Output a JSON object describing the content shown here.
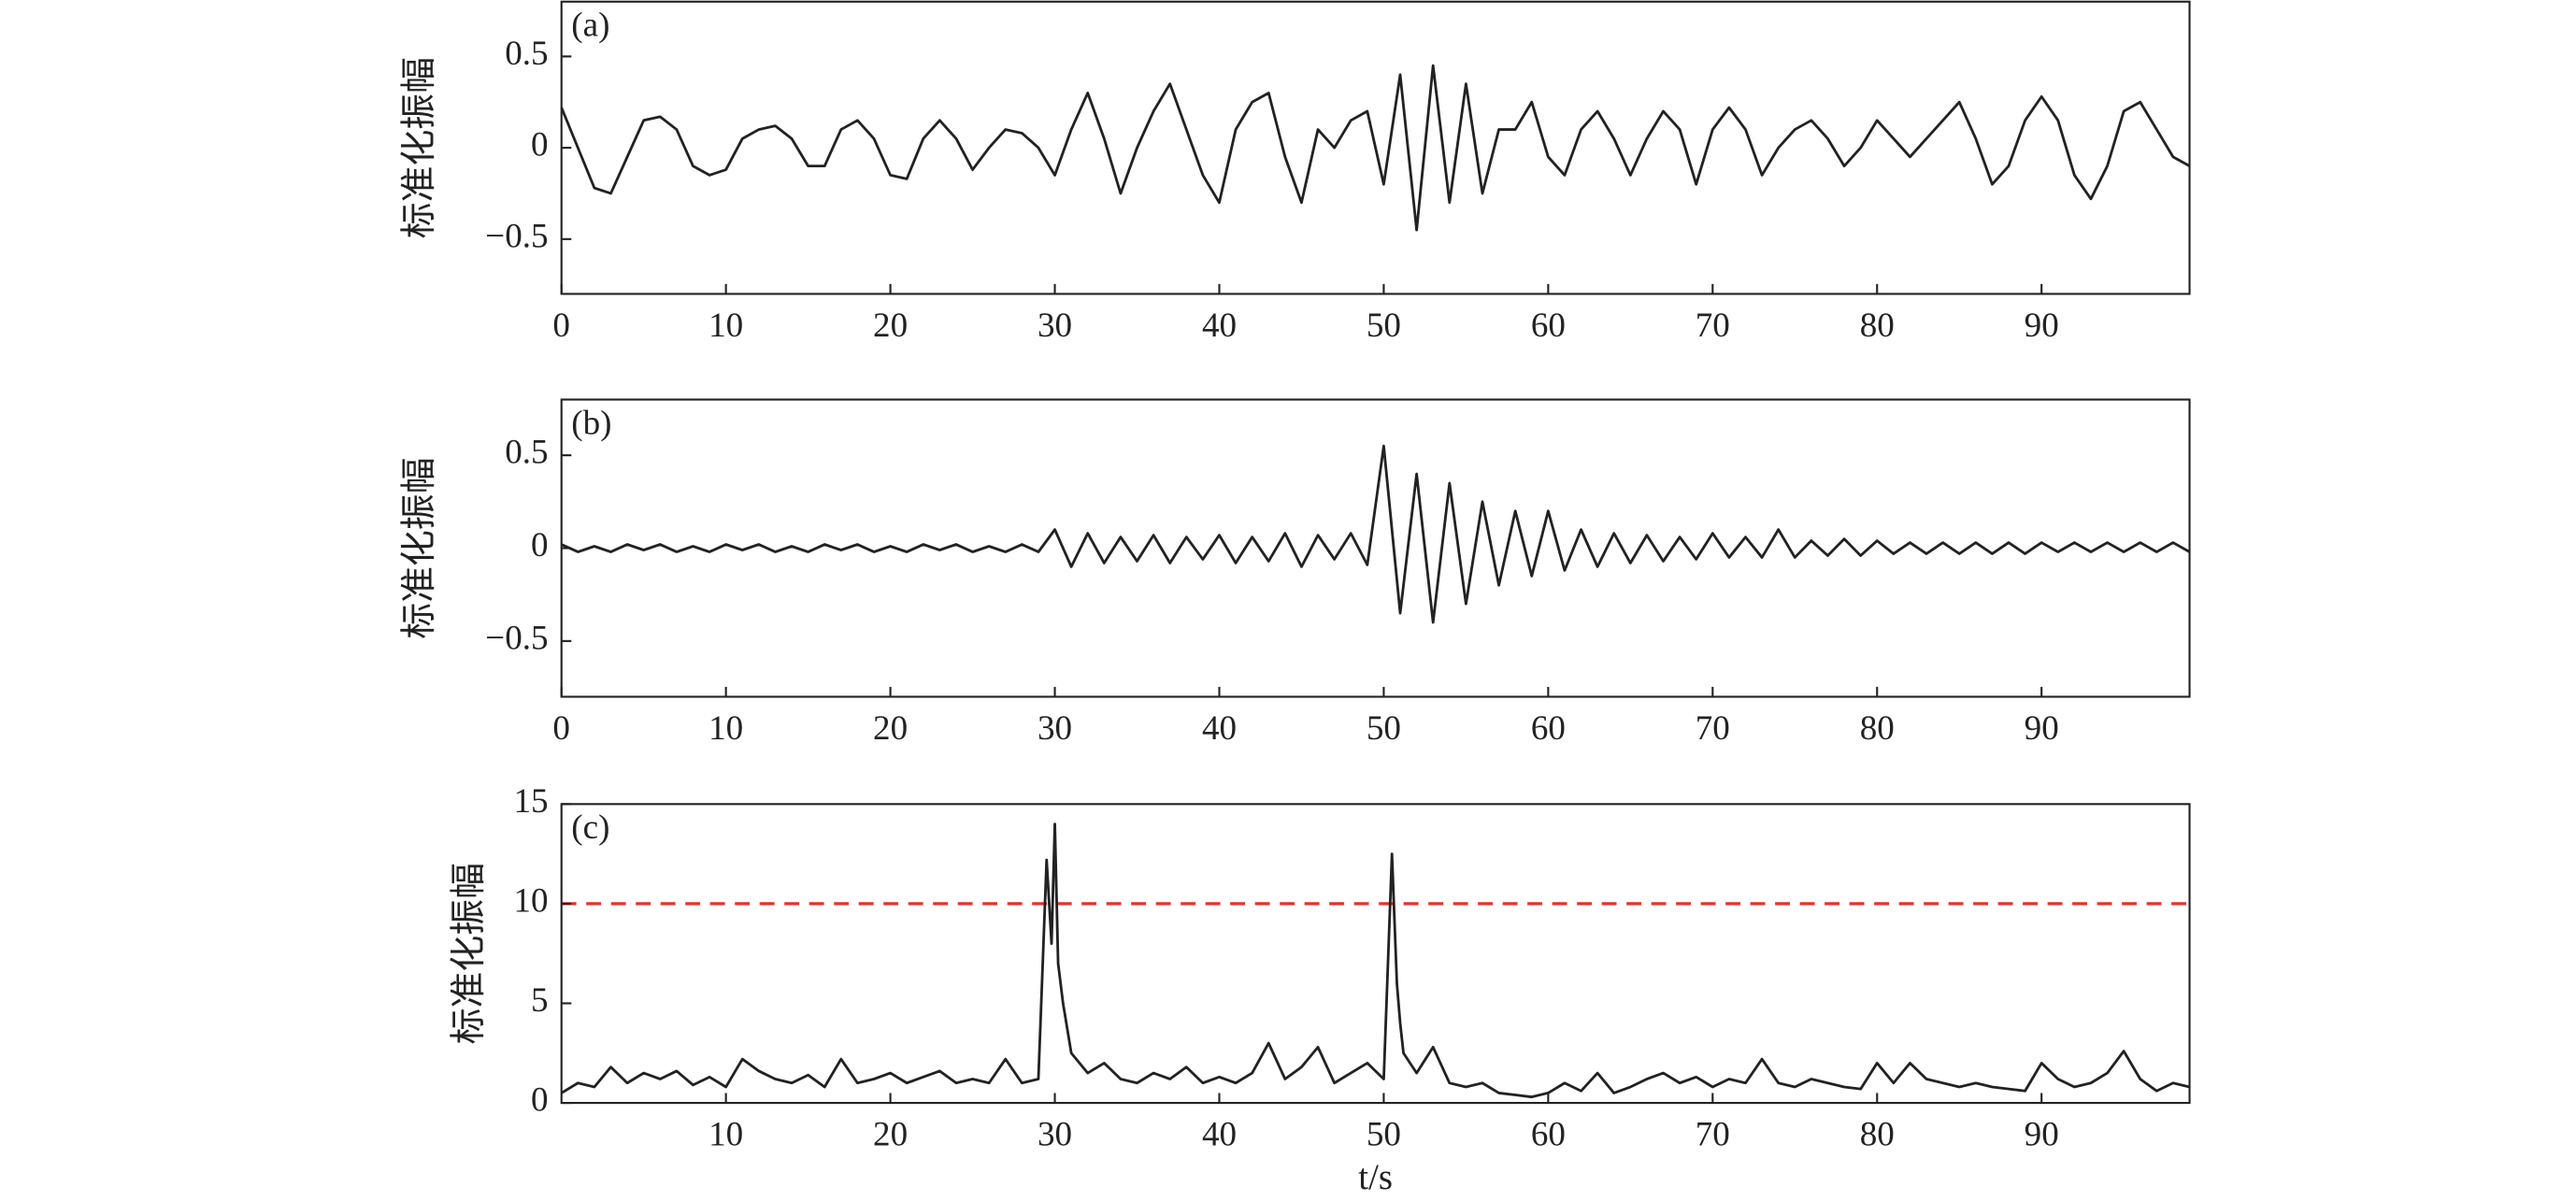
{
  "chart_data": [
    {
      "type": "line",
      "panel_label": "(a)",
      "ylabel": "标准化振幅",
      "x": [
        0,
        1,
        2,
        3,
        4,
        5,
        6,
        7,
        8,
        9,
        10,
        11,
        12,
        13,
        14,
        15,
        16,
        17,
        18,
        19,
        20,
        21,
        22,
        23,
        24,
        25,
        26,
        27,
        28,
        29,
        30,
        31,
        32,
        33,
        34,
        35,
        36,
        37,
        38,
        39,
        40,
        41,
        42,
        43,
        44,
        45,
        46,
        47,
        48,
        49,
        50,
        51,
        52,
        53,
        54,
        55,
        56,
        57,
        58,
        59,
        60,
        61,
        62,
        63,
        64,
        65,
        66,
        67,
        68,
        69,
        70,
        71,
        72,
        73,
        74,
        75,
        76,
        77,
        78,
        79,
        80,
        81,
        82,
        83,
        84,
        85,
        86,
        87,
        88,
        89,
        90,
        91,
        92,
        93,
        94,
        95,
        96,
        97,
        98,
        99
      ],
      "series": [
        {
          "color": "#222222",
          "values": [
            0.22,
            0.0,
            -0.22,
            -0.25,
            -0.05,
            0.15,
            0.17,
            0.1,
            -0.1,
            -0.15,
            -0.12,
            0.05,
            0.1,
            0.12,
            0.05,
            -0.1,
            -0.1,
            0.1,
            0.15,
            0.05,
            -0.15,
            -0.17,
            0.05,
            0.15,
            0.05,
            -0.12,
            0.0,
            0.1,
            0.08,
            0.0,
            -0.15,
            0.1,
            0.3,
            0.05,
            -0.25,
            0.0,
            0.2,
            0.35,
            0.1,
            -0.15,
            -0.3,
            0.1,
            0.25,
            0.3,
            -0.05,
            -0.3,
            0.1,
            0.0,
            0.15,
            0.2,
            -0.2,
            0.4,
            -0.45,
            0.45,
            -0.3,
            0.35,
            -0.25,
            0.1,
            0.1,
            0.25,
            -0.05,
            -0.15,
            0.1,
            0.2,
            0.05,
            -0.15,
            0.05,
            0.2,
            0.1,
            -0.2,
            0.1,
            0.22,
            0.1,
            -0.15,
            0.0,
            0.1,
            0.15,
            0.05,
            -0.1,
            0.0,
            0.15,
            0.05,
            -0.05,
            0.05,
            0.15,
            0.25,
            0.05,
            -0.2,
            -0.1,
            0.15,
            0.28,
            0.15,
            -0.15,
            -0.28,
            -0.1,
            0.2,
            0.25,
            0.1,
            -0.05,
            -0.1
          ]
        }
      ],
      "xlim": [
        0,
        99
      ],
      "xticks": [
        0,
        10,
        20,
        30,
        40,
        50,
        60,
        70,
        80,
        90
      ],
      "ylim": [
        -0.8,
        0.8
      ],
      "yticks": [
        {
          "value": -0.5,
          "label": "−0.5"
        },
        0,
        0.5
      ]
    },
    {
      "type": "line",
      "panel_label": "(b)",
      "ylabel": "标准化振幅",
      "x": [
        0,
        1,
        2,
        3,
        4,
        5,
        6,
        7,
        8,
        9,
        10,
        11,
        12,
        13,
        14,
        15,
        16,
        17,
        18,
        19,
        20,
        21,
        22,
        23,
        24,
        25,
        26,
        27,
        28,
        29,
        30,
        31,
        32,
        33,
        34,
        35,
        36,
        37,
        38,
        39,
        40,
        41,
        42,
        43,
        44,
        45,
        46,
        47,
        48,
        49,
        50,
        51,
        52,
        53,
        54,
        55,
        56,
        57,
        58,
        59,
        60,
        61,
        62,
        63,
        64,
        65,
        66,
        67,
        68,
        69,
        70,
        71,
        72,
        73,
        74,
        75,
        76,
        77,
        78,
        79,
        80,
        81,
        82,
        83,
        84,
        85,
        86,
        87,
        88,
        89,
        90,
        91,
        92,
        93,
        94,
        95,
        96,
        97,
        98,
        99
      ],
      "series": [
        {
          "color": "#222222",
          "values": [
            0.02,
            -0.02,
            0.01,
            -0.02,
            0.02,
            -0.01,
            0.02,
            -0.02,
            0.01,
            -0.02,
            0.02,
            -0.01,
            0.02,
            -0.02,
            0.01,
            -0.02,
            0.02,
            -0.01,
            0.02,
            -0.02,
            0.01,
            -0.02,
            0.02,
            -0.01,
            0.02,
            -0.02,
            0.01,
            -0.02,
            0.02,
            -0.02,
            0.1,
            -0.1,
            0.08,
            -0.08,
            0.06,
            -0.07,
            0.07,
            -0.08,
            0.06,
            -0.06,
            0.07,
            -0.08,
            0.06,
            -0.07,
            0.08,
            -0.1,
            0.07,
            -0.06,
            0.08,
            -0.09,
            0.55,
            -0.35,
            0.4,
            -0.4,
            0.35,
            -0.3,
            0.25,
            -0.2,
            0.2,
            -0.15,
            0.2,
            -0.12,
            0.1,
            -0.1,
            0.08,
            -0.08,
            0.07,
            -0.07,
            0.06,
            -0.06,
            0.08,
            -0.05,
            0.06,
            -0.05,
            0.1,
            -0.05,
            0.04,
            -0.04,
            0.05,
            -0.04,
            0.04,
            -0.03,
            0.03,
            -0.03,
            0.03,
            -0.03,
            0.03,
            -0.03,
            0.03,
            -0.03,
            0.03,
            -0.02,
            0.03,
            -0.02,
            0.03,
            -0.02,
            0.03,
            -0.02,
            0.03,
            -0.02
          ]
        }
      ],
      "xlim": [
        0,
        99
      ],
      "xticks": [
        0,
        10,
        20,
        30,
        40,
        50,
        60,
        70,
        80,
        90
      ],
      "ylim": [
        -0.8,
        0.8
      ],
      "yticks": [
        {
          "value": -0.5,
          "label": "−0.5"
        },
        0,
        0.5
      ]
    },
    {
      "type": "line",
      "panel_label": "(c)",
      "ylabel": "标准化振幅",
      "xlabel": "t/s",
      "x": [
        0,
        1,
        2,
        3,
        4,
        5,
        6,
        7,
        8,
        9,
        10,
        11,
        12,
        13,
        14,
        15,
        16,
        17,
        18,
        19,
        20,
        21,
        22,
        23,
        24,
        25,
        26,
        27,
        28,
        29,
        29.5,
        29.8,
        30,
        30.2,
        30.5,
        31,
        32,
        33,
        34,
        35,
        36,
        37,
        38,
        39,
        40,
        41,
        42,
        43,
        44,
        45,
        46,
        47,
        48,
        49,
        50,
        50.5,
        50.8,
        51,
        51.2,
        52,
        53,
        54,
        55,
        56,
        57,
        58,
        59,
        60,
        61,
        62,
        63,
        64,
        65,
        66,
        67,
        68,
        69,
        70,
        71,
        72,
        73,
        74,
        75,
        76,
        77,
        78,
        79,
        80,
        81,
        82,
        83,
        84,
        85,
        86,
        87,
        88,
        89,
        90,
        91,
        92,
        93,
        94,
        95,
        96,
        97,
        98,
        99
      ],
      "series": [
        {
          "color": "#222222",
          "values": [
            0.5,
            1.0,
            0.8,
            1.8,
            1.0,
            1.5,
            1.2,
            1.6,
            0.9,
            1.3,
            0.8,
            2.2,
            1.6,
            1.2,
            1.0,
            1.4,
            0.8,
            2.2,
            1.0,
            1.2,
            1.5,
            1.0,
            1.3,
            1.6,
            1.0,
            1.2,
            1.0,
            2.2,
            1.0,
            1.2,
            12.2,
            8,
            14,
            7,
            5,
            2.5,
            1.5,
            2.0,
            1.2,
            1.0,
            1.5,
            1.2,
            1.8,
            1.0,
            1.3,
            1.0,
            1.5,
            3.0,
            1.2,
            1.8,
            2.8,
            1.0,
            1.5,
            2.0,
            1.2,
            12.5,
            6,
            4,
            2.5,
            1.5,
            2.8,
            1.0,
            0.8,
            1.0,
            0.5,
            0.4,
            0.3,
            0.5,
            1.0,
            0.6,
            1.5,
            0.5,
            0.8,
            1.2,
            1.5,
            1.0,
            1.3,
            0.8,
            1.2,
            1.0,
            2.2,
            1.0,
            0.8,
            1.2,
            1.0,
            0.8,
            0.7,
            2.0,
            1.0,
            2.0,
            1.2,
            1.0,
            0.8,
            1.0,
            0.8,
            0.7,
            0.6,
            2.0,
            1.2,
            0.8,
            1.0,
            1.5,
            2.6,
            1.2,
            0.6,
            1.0,
            0.8
          ]
        }
      ],
      "threshold": 10,
      "threshold_color": "#e8302a",
      "xlim": [
        0,
        99
      ],
      "xticks": [
        10,
        20,
        30,
        40,
        50,
        60,
        70,
        80,
        90
      ],
      "ylim": [
        0,
        15
      ],
      "yticks": [
        0,
        5,
        10,
        15
      ]
    }
  ]
}
